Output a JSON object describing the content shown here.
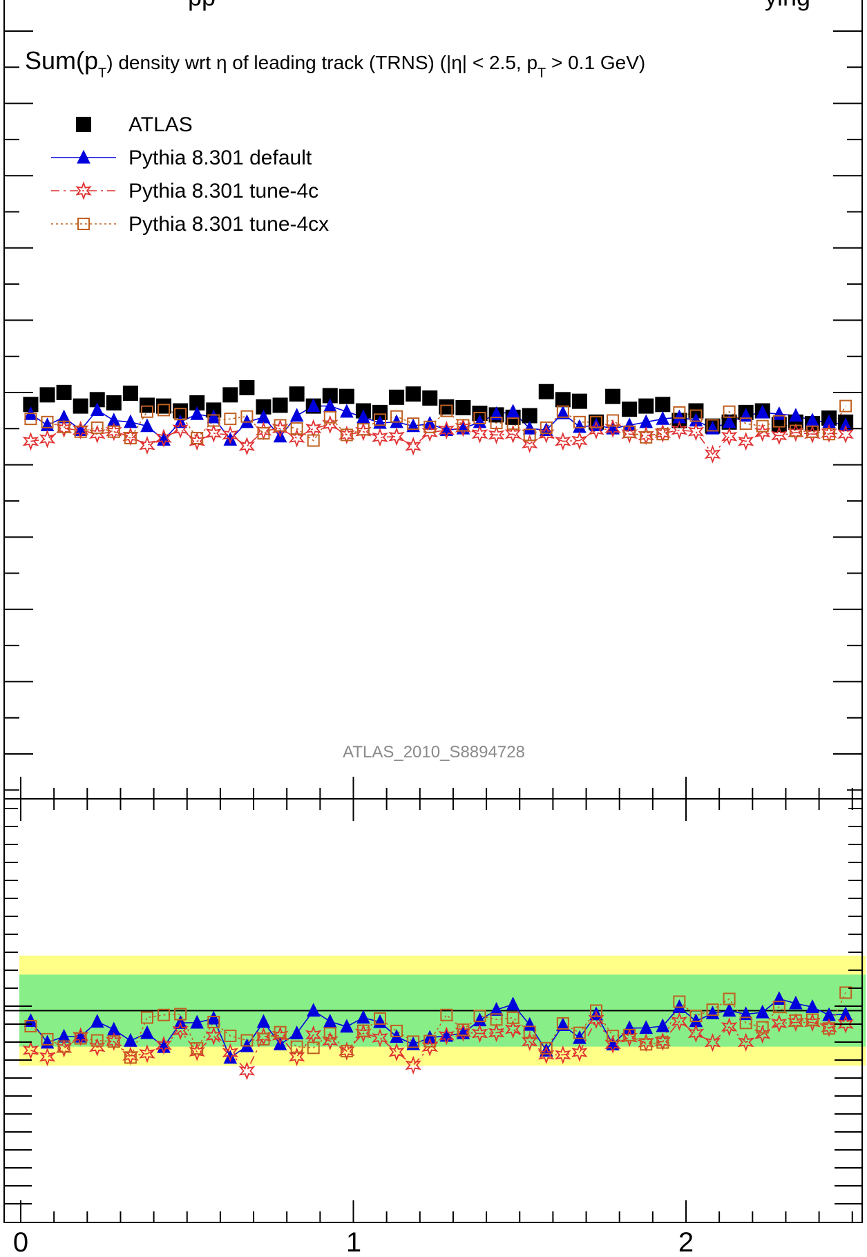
{
  "chart_data": {
    "type": "scatter",
    "top_title_fragment": "pp",
    "top_title_fragment_right": "ying",
    "title": {
      "pre": "Sum(p",
      "sub1": "T",
      "mid": ") density wrt η of leading track (TRNS) (|η| < 2.5, p",
      "sub2": "T",
      "post": " > 0.1 GeV)"
    },
    "watermark": "ATLAS_2010_S8894728",
    "x_tick_labels": [
      "0",
      "1",
      "2"
    ],
    "xlim": [
      -0.04,
      2.54
    ],
    "main_ylim": [
      0,
      1
    ],
    "ratio_ylim": [
      0.5,
      1.5
    ],
    "ratio_reference": 1.0,
    "legend_position": "top-left",
    "colors": {
      "data": "#000000",
      "default": "#0000dd",
      "tune4c": "#e03030",
      "tune4cx": "#c06020",
      "band_inner": "#88ee88",
      "band_outer": "#ffff88"
    },
    "x": [
      0.03,
      0.08,
      0.13,
      0.18,
      0.23,
      0.28,
      0.33,
      0.38,
      0.43,
      0.48,
      0.53,
      0.58,
      0.63,
      0.68,
      0.73,
      0.78,
      0.83,
      0.88,
      0.93,
      0.98,
      1.03,
      1.08,
      1.13,
      1.18,
      1.23,
      1.28,
      1.33,
      1.38,
      1.43,
      1.48,
      1.53,
      1.58,
      1.63,
      1.68,
      1.73,
      1.78,
      1.83,
      1.88,
      1.93,
      1.98,
      2.03,
      2.08,
      2.13,
      2.18,
      2.23,
      2.28,
      2.33,
      2.38,
      2.43,
      2.48
    ],
    "series": [
      {
        "name": "ATLAS",
        "marker": "filled-square",
        "values": [
          0.492,
          0.504,
          0.507,
          0.49,
          0.498,
          0.494,
          0.506,
          0.491,
          0.49,
          0.484,
          0.494,
          0.485,
          0.504,
          0.513,
          0.489,
          0.491,
          0.505,
          0.49,
          0.503,
          0.502,
          0.484,
          0.482,
          0.501,
          0.505,
          0.5,
          0.489,
          0.488,
          0.481,
          0.479,
          0.476,
          0.478,
          0.508,
          0.498,
          0.496,
          0.47,
          0.502,
          0.486,
          0.49,
          0.492,
          0.472,
          0.484,
          0.465,
          0.47,
          0.482,
          0.484,
          0.467,
          0.47,
          0.468,
          0.475,
          0.47
        ]
      },
      {
        "name": "Pythia 8.301 default",
        "marker": "filled-triangle",
        "values": [
          0.48,
          0.466,
          0.476,
          0.46,
          0.485,
          0.472,
          0.47,
          0.465,
          0.448,
          0.47,
          0.48,
          0.476,
          0.448,
          0.47,
          0.476,
          0.452,
          0.478,
          0.49,
          0.49,
          0.483,
          0.476,
          0.469,
          0.47,
          0.465,
          0.468,
          0.46,
          0.462,
          0.47,
          0.48,
          0.483,
          0.462,
          0.46,
          0.481,
          0.464,
          0.466,
          0.462,
          0.466,
          0.47,
          0.474,
          0.476,
          0.472,
          0.462,
          0.47,
          0.478,
          0.482,
          0.48,
          0.478,
          0.472,
          0.47,
          0.466
        ]
      },
      {
        "name": "Pythia 8.301 tune-4c",
        "marker": "open-star",
        "values": [
          0.446,
          0.449,
          0.462,
          0.46,
          0.455,
          0.458,
          0.452,
          0.441,
          0.45,
          0.461,
          0.446,
          0.456,
          0.454,
          0.44,
          0.459,
          0.462,
          0.45,
          0.462,
          0.467,
          0.454,
          0.458,
          0.451,
          0.452,
          0.44,
          0.457,
          0.46,
          0.463,
          0.455,
          0.454,
          0.455,
          0.443,
          0.455,
          0.446,
          0.447,
          0.46,
          0.462,
          0.455,
          0.453,
          0.456,
          0.46,
          0.458,
          0.43,
          0.452,
          0.446,
          0.457,
          0.453,
          0.457,
          0.455,
          0.456,
          0.455
        ]
      },
      {
        "name": "Pythia 8.301 tune-4cx",
        "marker": "open-square",
        "values": [
          0.474,
          0.47,
          0.464,
          0.458,
          0.463,
          0.458,
          0.45,
          0.483,
          0.485,
          0.48,
          0.45,
          0.472,
          0.474,
          0.477,
          0.456,
          0.466,
          0.462,
          0.447,
          0.476,
          0.454,
          0.461,
          0.473,
          0.477,
          0.468,
          0.464,
          0.484,
          0.466,
          0.475,
          0.469,
          0.468,
          0.454,
          0.463,
          0.483,
          0.47,
          0.47,
          0.472,
          0.458,
          0.451,
          0.455,
          0.482,
          0.478,
          0.466,
          0.483,
          0.468,
          0.465,
          0.471,
          0.459,
          0.458,
          0.455,
          0.49
        ]
      }
    ],
    "ratio_band_inner": [
      0.915,
      1.085
    ],
    "ratio_band_outer": [
      0.87,
      1.13
    ]
  }
}
